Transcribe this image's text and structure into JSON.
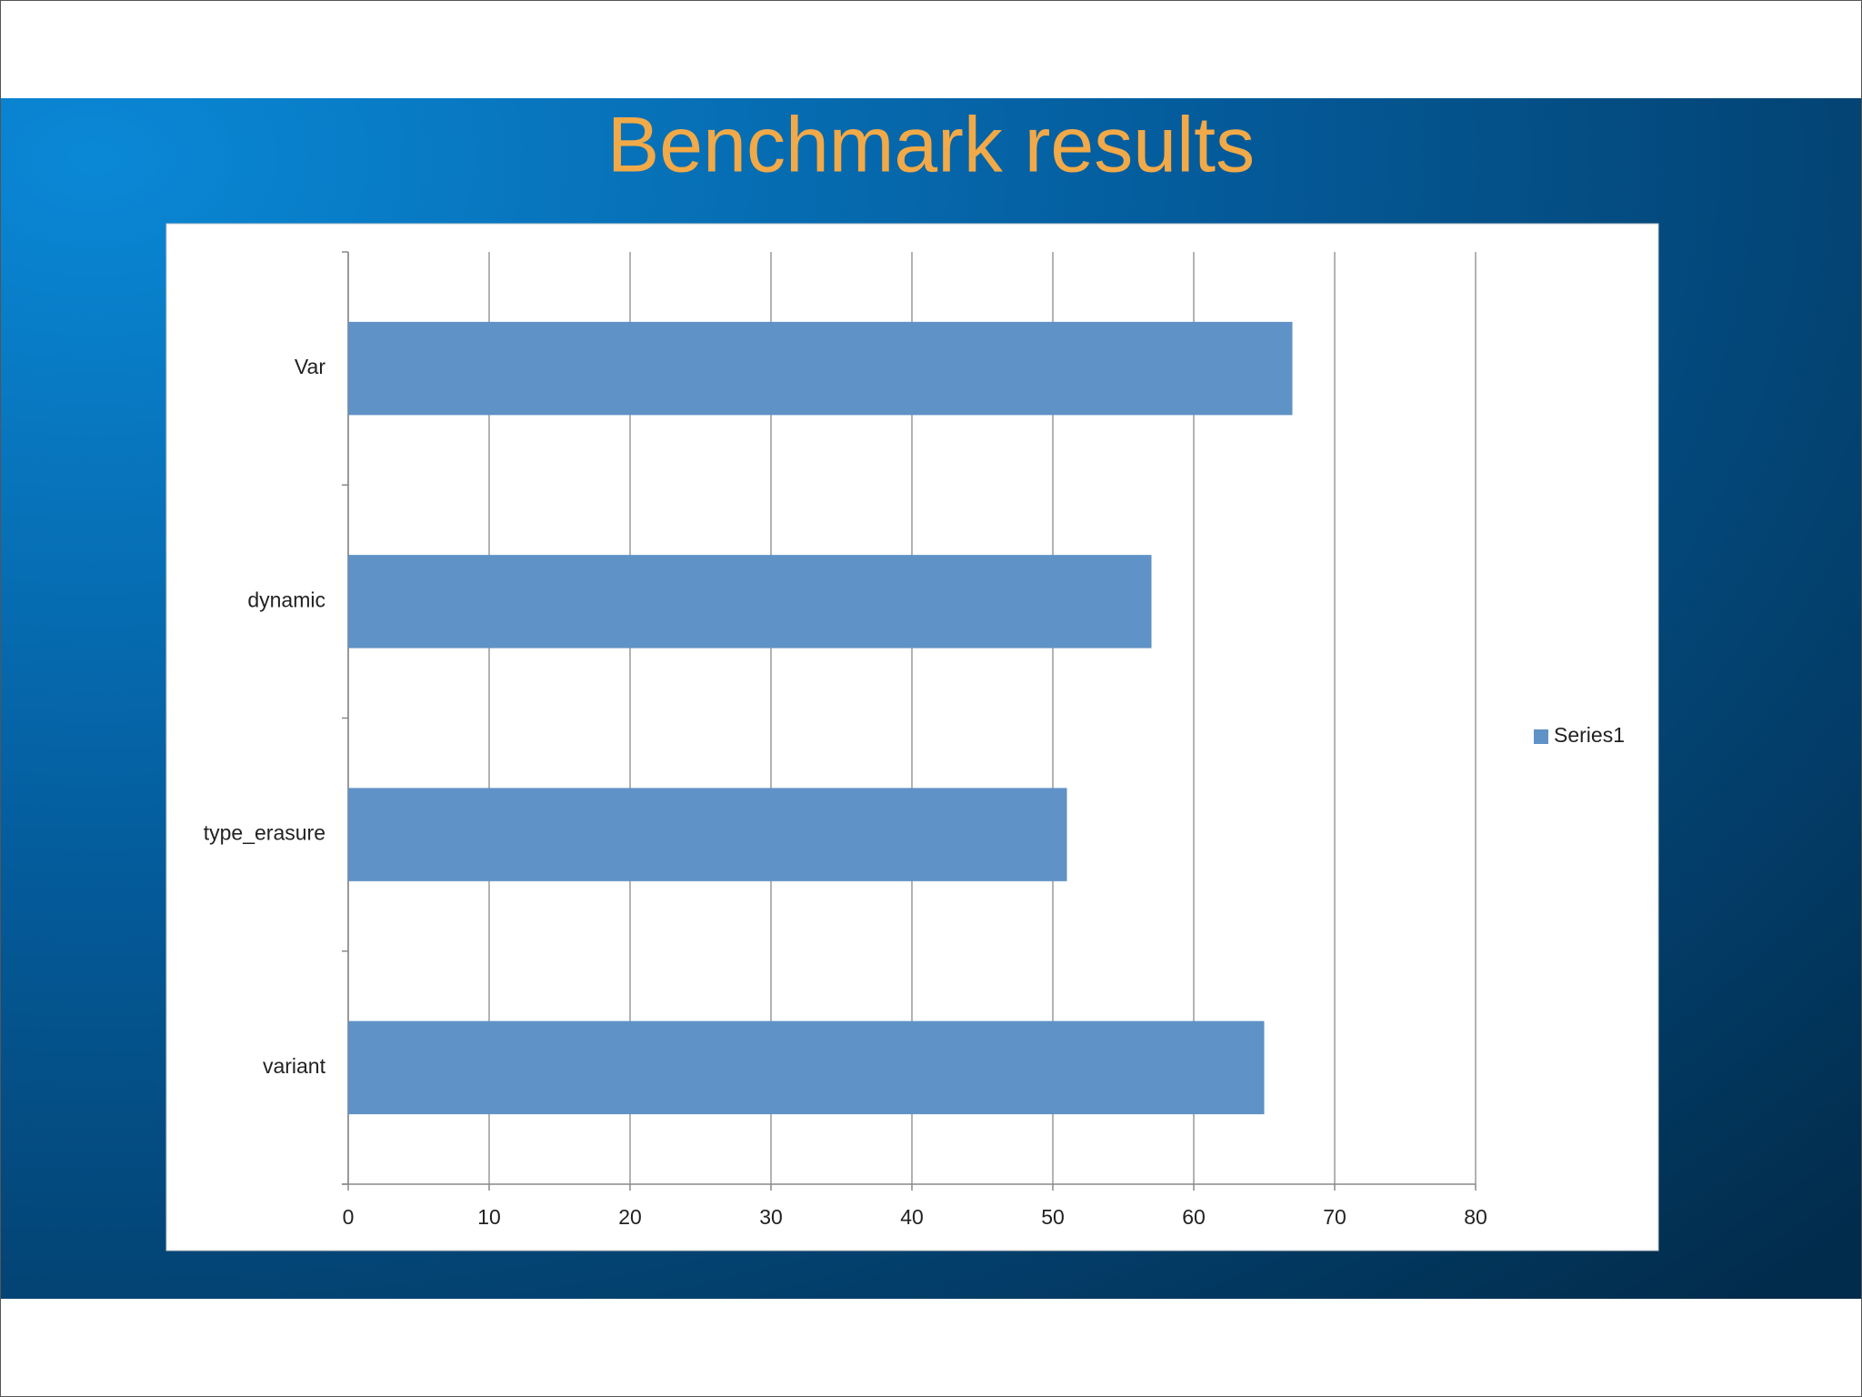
{
  "chart_data": {
    "type": "bar",
    "orientation": "horizontal",
    "title": "Benchmark results",
    "categories": [
      "Var",
      "dynamic",
      "type_erasure",
      "variant"
    ],
    "series": [
      {
        "name": "Series1",
        "color": "#5f92c6",
        "values": [
          67,
          57,
          51,
          65
        ]
      }
    ],
    "xlim": [
      0,
      80
    ],
    "xticks": [
      0,
      10,
      20,
      30,
      40,
      50,
      60,
      70,
      80
    ],
    "grid": true,
    "legend": "right"
  }
}
